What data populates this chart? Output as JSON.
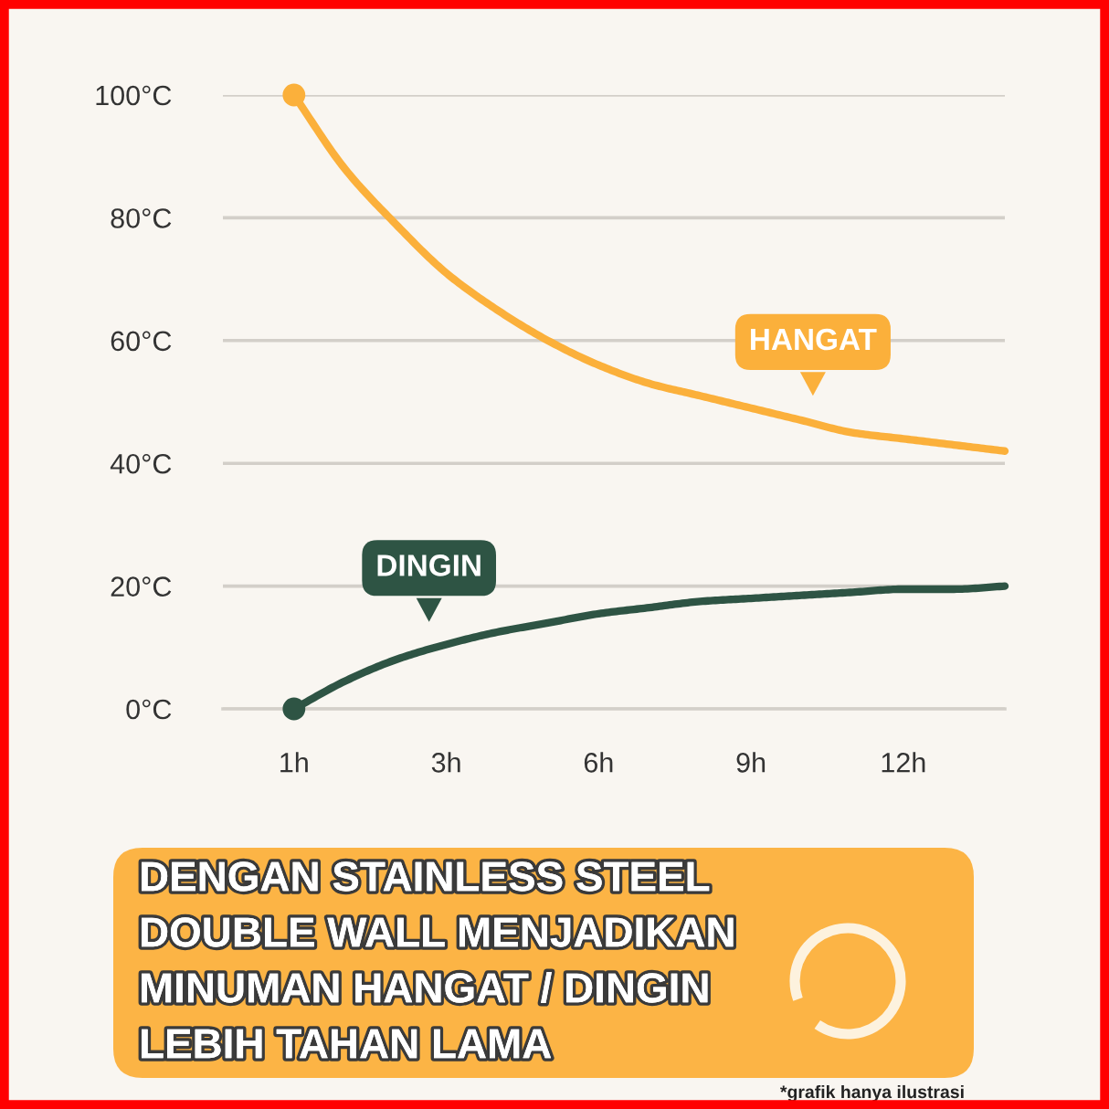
{
  "chart_data": {
    "type": "line",
    "categories": [
      "1h",
      null,
      null,
      "3h",
      null,
      null,
      "6h",
      null,
      null,
      "9h",
      null,
      null,
      "12h",
      null,
      null
    ],
    "series": [
      {
        "name": "HANGAT",
        "color": "#fbb03b",
        "values": [
          100,
          88,
          79,
          71,
          65,
          60,
          56,
          53,
          51,
          49,
          47,
          45,
          44,
          43,
          42
        ]
      },
      {
        "name": "DINGIN",
        "color": "#2e5444",
        "values": [
          0,
          4.5,
          8,
          10.5,
          12.5,
          14,
          15.5,
          16.5,
          17.5,
          18,
          18.5,
          19,
          19.5,
          19.5,
          20
        ]
      },
      {
        "type": "scatter",
        "marker": "circle",
        "color": "#fbb03b",
        "values": [
          100,
          null,
          null,
          null,
          null,
          null,
          null,
          null,
          null,
          null,
          null,
          null,
          null,
          null,
          null
        ]
      },
      {
        "type": "scatter",
        "marker": "circle",
        "color": "#2e5444",
        "values": [
          0,
          null,
          null,
          null,
          null,
          null,
          null,
          null,
          null,
          null,
          null,
          null,
          null,
          null,
          null
        ]
      }
    ],
    "ylim": [
      0,
      100
    ],
    "yticks": [
      {
        "value": 0,
        "label": "0°C"
      },
      {
        "value": 20,
        "label": "20°C"
      },
      {
        "value": 40,
        "label": "40°C"
      },
      {
        "value": 60,
        "label": "60°C"
      },
      {
        "value": 80,
        "label": "80°C"
      },
      {
        "value": 100,
        "label": "100°C"
      }
    ],
    "grid": "y",
    "annotations": [
      "DENGAN STAINLESS STEEL\nDOUBLE WALL MENJADIKAN\nMINUMAN HANGAT / DINGIN\nLEBIH TAHAN LAMA",
      "*grafik hanya ilustrasi"
    ]
  }
}
